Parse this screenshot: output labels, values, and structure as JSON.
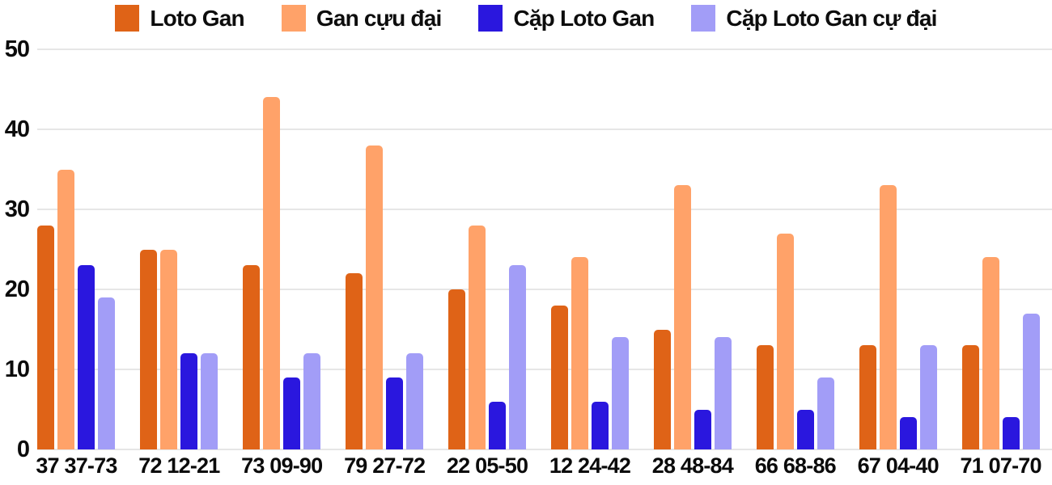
{
  "chart_data": {
    "type": "bar",
    "title": "",
    "xlabel": "",
    "ylabel": "",
    "legend_position": "top",
    "grid": true,
    "grid_color": "#E6E6E6",
    "text_color": "#0b0b0b",
    "background": "#ffffff",
    "ylim": [
      0,
      50
    ],
    "yticks": [
      0,
      10,
      20,
      30,
      40,
      50
    ],
    "categories": [
      "37 37-73",
      "72 12-21",
      "73 09-90",
      "79 27-72",
      "22 05-50",
      "12 24-42",
      "28 48-84",
      "66 68-86",
      "67 04-40",
      "71 07-70"
    ],
    "series": [
      {
        "name": "Loto Gan",
        "color": "#DF6317",
        "values": [
          28,
          25,
          23,
          22,
          20,
          18,
          15,
          13,
          13,
          13
        ]
      },
      {
        "name": "Gan cựu đại",
        "color": "#FFA269",
        "values": [
          35,
          25,
          44,
          38,
          28,
          24,
          33,
          27,
          33,
          24
        ]
      },
      {
        "name": "Cặp Loto Gan",
        "color": "#2A17DE",
        "values": [
          23,
          12,
          9,
          9,
          6,
          6,
          5,
          5,
          4,
          4
        ]
      },
      {
        "name": "Cặp Loto Gan cự đại",
        "color": "#A29DF7",
        "values": [
          19,
          12,
          12,
          12,
          23,
          14,
          14,
          9,
          13,
          17
        ]
      }
    ]
  }
}
